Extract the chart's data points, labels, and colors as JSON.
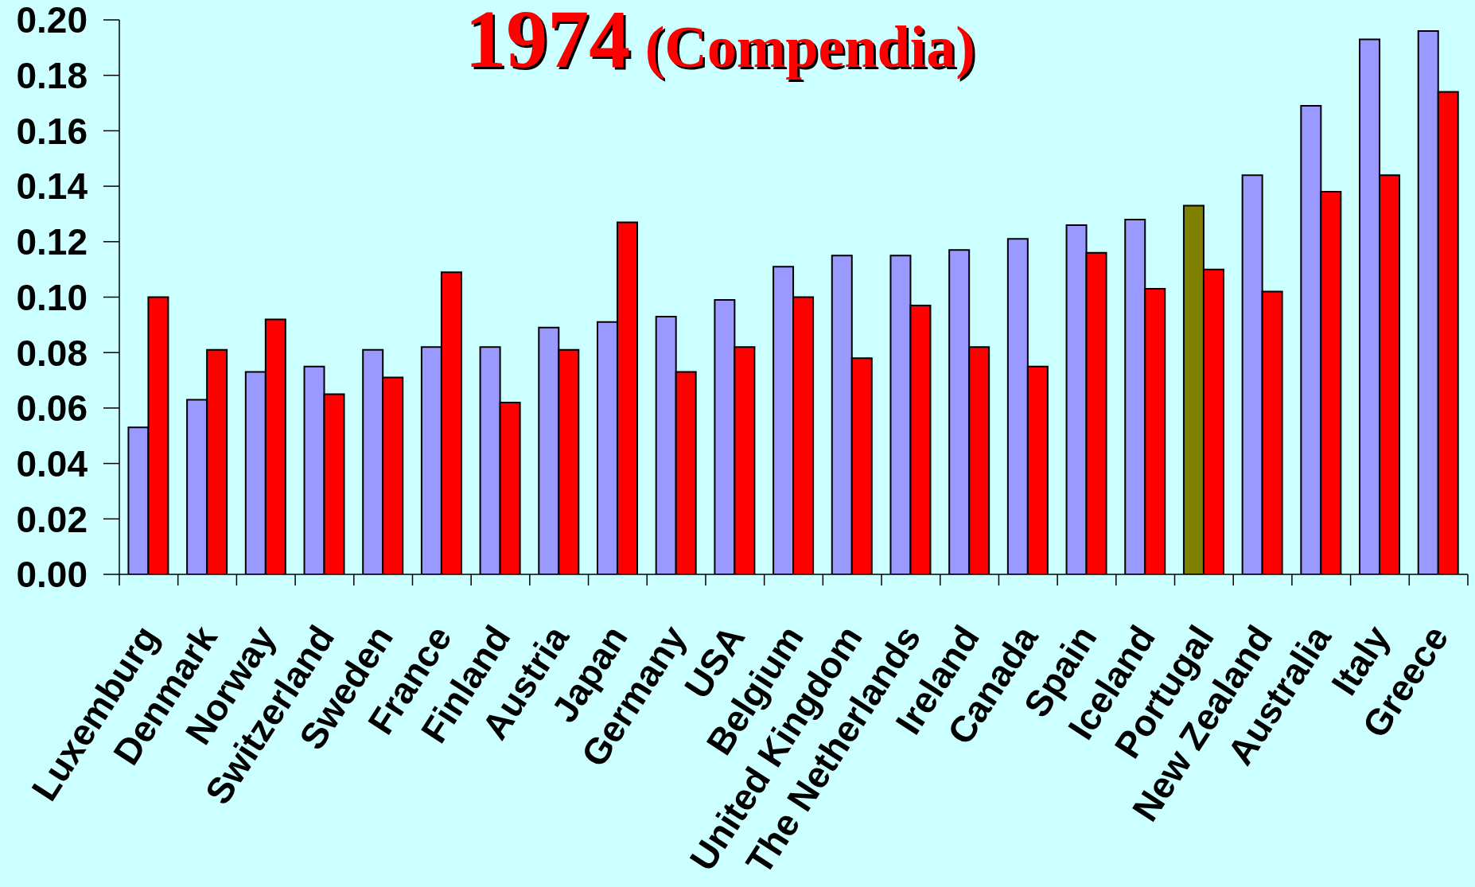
{
  "chart_data": {
    "type": "bar",
    "title": "1974 (Compendia)",
    "categories": [
      "Luxemburg",
      "Denmark",
      "Norway",
      "Switzerland",
      "Sweden",
      "France",
      "Finland",
      "Austria",
      "Japan",
      "Germany",
      "USA",
      "Belgium",
      "United Kingdom",
      "The Netherlands",
      "Ireland",
      "Canada",
      "Spain",
      "Iceland",
      "Portugal",
      "New Zealand",
      "Australia",
      "Italy",
      "Greece"
    ],
    "series": [
      {
        "color": "#9999ff",
        "colors": [
          "#9999ff",
          "#9999ff",
          "#9999ff",
          "#9999ff",
          "#9999ff",
          "#9999ff",
          "#9999ff",
          "#9999ff",
          "#9999ff",
          "#9999ff",
          "#9999ff",
          "#9999ff",
          "#9999ff",
          "#9999ff",
          "#9999ff",
          "#9999ff",
          "#9999ff",
          "#9999ff",
          "#808000",
          "#9999ff",
          "#9999ff",
          "#9999ff",
          "#9999ff"
        ],
        "values": [
          0.053,
          0.063,
          0.073,
          0.075,
          0.081,
          0.082,
          0.082,
          0.089,
          0.091,
          0.093,
          0.099,
          0.111,
          0.115,
          0.115,
          0.117,
          0.121,
          0.126,
          0.128,
          0.133,
          0.144,
          0.169,
          0.193,
          0.196
        ]
      },
      {
        "color": "#ff0000",
        "values": [
          0.1,
          0.081,
          0.092,
          0.065,
          0.071,
          0.109,
          0.062,
          0.081,
          0.127,
          0.073,
          0.082,
          0.1,
          0.078,
          0.097,
          0.082,
          0.075,
          0.116,
          0.103,
          0.11,
          0.102,
          0.138,
          0.144,
          0.174
        ]
      }
    ],
    "ylim": [
      0,
      0.2
    ],
    "yticks": [
      {
        "value": 0,
        "label": "0.00"
      },
      {
        "value": 0.02,
        "label": "0.02"
      },
      {
        "value": 0.04,
        "label": "0.04"
      },
      {
        "value": 0.06,
        "label": "0.06"
      },
      {
        "value": 0.08,
        "label": "0.08"
      },
      {
        "value": 0.1,
        "label": "0.10"
      },
      {
        "value": 0.12,
        "label": "0.12"
      },
      {
        "value": 0.14,
        "label": "0.14"
      },
      {
        "value": 0.16,
        "label": "0.16"
      },
      {
        "value": 0.18,
        "label": "0.18"
      },
      {
        "value": 0.2,
        "label": "0.20"
      }
    ]
  }
}
